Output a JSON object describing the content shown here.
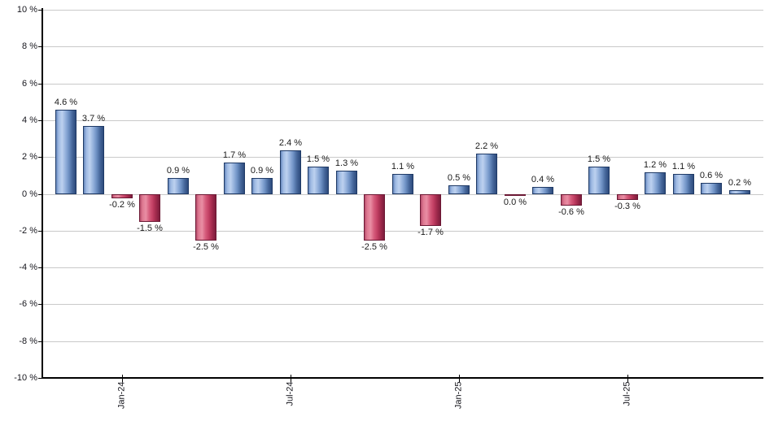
{
  "chart_data": {
    "type": "bar",
    "title": "",
    "xlabel": "",
    "ylabel": "",
    "ylim": [
      -10,
      10
    ],
    "grid": true,
    "legend": "none",
    "y_tick_labels": [
      "10 %",
      "8 %",
      "6 %",
      "4 %",
      "2 %",
      "0 %",
      "-2 %",
      "-4 %",
      "-6 %",
      "-8 %",
      "-10 %"
    ],
    "y_tick_values": [
      10,
      8,
      6,
      4,
      2,
      0,
      -2,
      -4,
      -6,
      -8,
      -10
    ],
    "x_ticks": [
      {
        "label": "Jan-24",
        "bar_index": 2
      },
      {
        "label": "Jul-24",
        "bar_index": 8
      },
      {
        "label": "Jan-25",
        "bar_index": 14
      },
      {
        "label": "Jul-25",
        "bar_index": 20
      }
    ],
    "bars": [
      {
        "value": 4.6,
        "label": "4.6 %",
        "color": "positive"
      },
      {
        "value": 3.7,
        "label": "3.7 %",
        "color": "positive"
      },
      {
        "value": -0.2,
        "label": "-0.2 %",
        "color": "negative"
      },
      {
        "value": -1.5,
        "label": "-1.5 %",
        "color": "negative"
      },
      {
        "value": 0.9,
        "label": "0.9 %",
        "color": "positive"
      },
      {
        "value": -2.5,
        "label": "-2.5 %",
        "color": "negative"
      },
      {
        "value": 1.7,
        "label": "1.7 %",
        "color": "positive"
      },
      {
        "value": 0.9,
        "label": "0.9 %",
        "color": "positive"
      },
      {
        "value": 2.4,
        "label": "2.4 %",
        "color": "positive"
      },
      {
        "value": 1.5,
        "label": "1.5 %",
        "color": "positive"
      },
      {
        "value": 1.3,
        "label": "1.3 %",
        "color": "positive"
      },
      {
        "value": -2.5,
        "label": "-2.5 %",
        "color": "negative"
      },
      {
        "value": 1.1,
        "label": "1.1 %",
        "color": "positive"
      },
      {
        "value": -1.7,
        "label": "-1.7 %",
        "color": "negative"
      },
      {
        "value": 0.5,
        "label": "0.5 %",
        "color": "positive"
      },
      {
        "value": 2.2,
        "label": "2.2 %",
        "color": "positive"
      },
      {
        "value": -0.04,
        "label": "0.0 %",
        "color": "negative"
      },
      {
        "value": 0.4,
        "label": "0.4 %",
        "color": "positive"
      },
      {
        "value": -0.6,
        "label": "-0.6 %",
        "color": "negative"
      },
      {
        "value": 1.5,
        "label": "1.5 %",
        "color": "positive"
      },
      {
        "value": -0.3,
        "label": "-0.3 %",
        "color": "negative"
      },
      {
        "value": 1.2,
        "label": "1.2 %",
        "color": "positive"
      },
      {
        "value": 1.1,
        "label": "1.1 %",
        "color": "positive"
      },
      {
        "value": 0.6,
        "label": "0.6 %",
        "color": "positive"
      },
      {
        "value": 0.2,
        "label": "0.2 %",
        "color": "positive"
      }
    ],
    "colors": {
      "positive_bar": "#6f92c5",
      "negative_bar": "#c94a69",
      "gridline": "#c9c9c9",
      "axis": "#000000",
      "label_text": "#1a1a1a",
      "background": "#ffffff"
    }
  }
}
